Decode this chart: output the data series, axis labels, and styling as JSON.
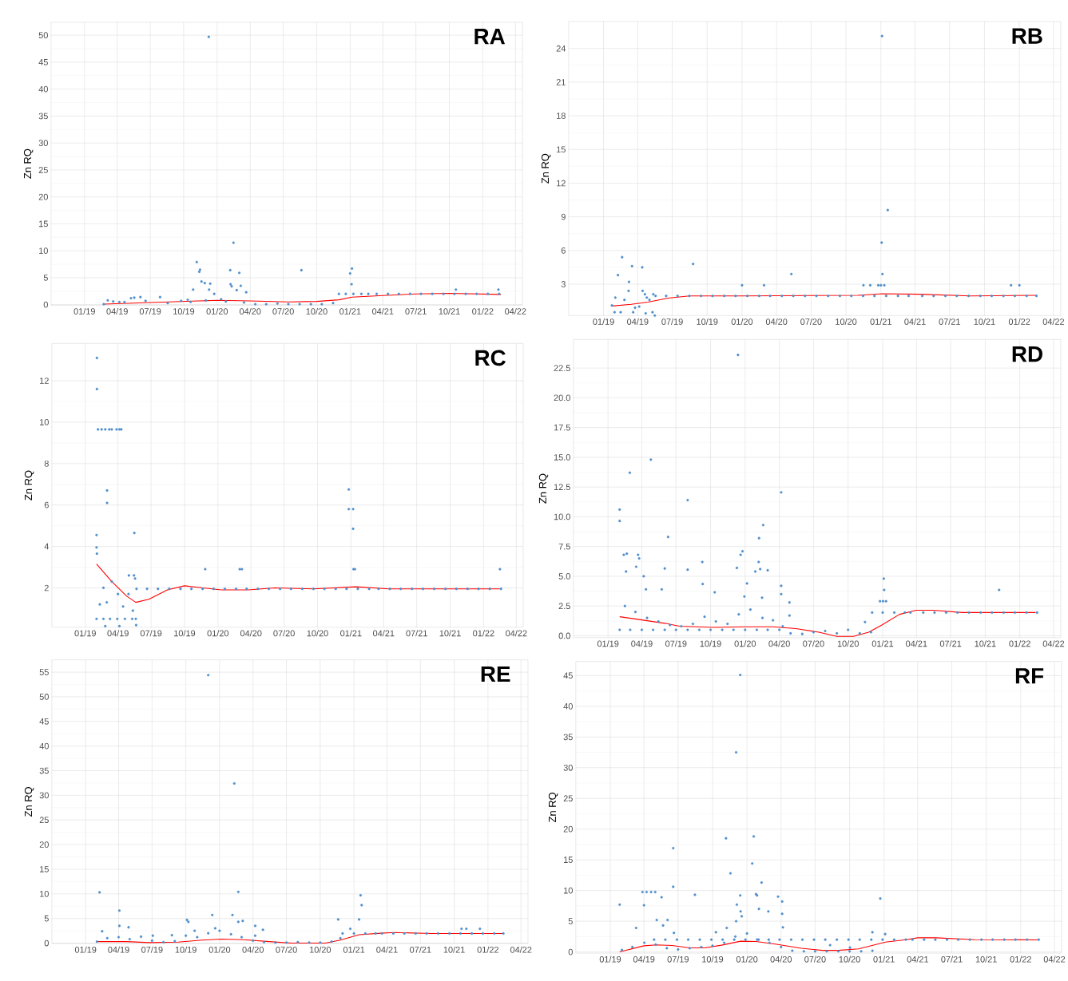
{
  "chart_data": [
    {
      "type": "scatter",
      "title": "RA",
      "ylabel": "Zn RQ",
      "xlim": [
        "2018-10-01",
        "2022-04-20"
      ],
      "xticks": [
        {
          "value": "2019-01-01",
          "label": "01/19"
        },
        {
          "value": "2019-04-01",
          "label": "04/19"
        },
        {
          "value": "2019-07-01",
          "label": "07/19"
        },
        {
          "value": "2019-10-01",
          "label": "10/19"
        },
        {
          "value": "2020-01-01",
          "label": "01/20"
        },
        {
          "value": "2020-04-01",
          "label": "04/20"
        },
        {
          "value": "2020-07-01",
          "label": "07/20"
        },
        {
          "value": "2020-10-01",
          "label": "10/20"
        },
        {
          "value": "2021-01-01",
          "label": "01/21"
        },
        {
          "value": "2021-04-01",
          "label": "04/21"
        },
        {
          "value": "2021-07-01",
          "label": "07/21"
        },
        {
          "value": "2021-10-01",
          "label": "10/21"
        },
        {
          "value": "2022-01-01",
          "label": "01/22"
        },
        {
          "value": "2022-04-01",
          "label": "04/22"
        }
      ],
      "ylim": [
        -0.1,
        52.4
      ],
      "yticks": [
        0,
        5,
        10,
        15,
        20,
        25,
        30,
        35,
        40,
        45,
        50
      ],
      "grid": true,
      "series": [
        {
          "type": "scatter",
          "color": "#4f8fcc",
          "marker": "circle",
          "x": [
            "2019-02-23",
            "2019-03-06",
            "2019-03-21",
            "2019-04-07",
            "2019-04-21",
            "2019-05-09",
            "2019-05-18",
            "2019-06-04",
            "2019-06-18",
            "2019-07-28",
            "2019-08-18",
            "2019-09-24",
            "2019-10-12",
            "2019-10-27",
            "2019-11-06",
            "2019-11-13",
            "2019-11-15",
            "2019-11-19",
            "2019-11-28",
            "2019-12-09",
            "2019-12-10",
            "2019-12-13",
            "2019-12-24",
            "2020-01-12",
            "2020-02-06",
            "2020-02-07",
            "2020-02-10",
            "2020-02-15",
            "2020-02-24",
            "2020-03-02",
            "2020-03-06",
            "2020-03-21",
            "2019-10-20",
            "2019-12-01",
            "2020-01-25",
            "2020-03-15",
            "2020-04-15",
            "2020-05-15",
            "2020-06-15",
            "2020-07-15",
            "2020-08-15",
            "2020-08-20",
            "2020-09-15",
            "2020-10-15",
            "2020-11-15",
            "2020-12-01",
            "2020-12-20",
            "2021-01-10",
            "2021-02-01",
            "2021-02-20",
            "2021-03-15",
            "2021-01-01",
            "2021-01-06",
            "2021-01-05",
            "2021-04-15",
            "2021-05-15",
            "2021-06-15",
            "2021-07-15",
            "2021-08-15",
            "2021-09-15",
            "2021-10-15",
            "2021-11-15",
            "2021-12-15",
            "2022-01-15",
            "2022-02-15",
            "2021-10-19",
            "2022-02-13"
          ],
          "values": [
            0.1,
            0.8,
            0.6,
            0.5,
            0.5,
            1.2,
            1.3,
            1.4,
            0.7,
            1.4,
            0.3,
            0.7,
            0.9,
            2.8,
            7.9,
            6.1,
            6.5,
            4.3,
            4.0,
            49.7,
            2.8,
            3.9,
            2.0,
            1.0,
            6.4,
            3.8,
            3.4,
            11.5,
            2.7,
            5.9,
            3.5,
            2.3,
            0.5,
            0.8,
            0.6,
            0.4,
            0.1,
            0.1,
            0.2,
            0.1,
            0.1,
            6.4,
            0.1,
            0.1,
            0.3,
            2.0,
            2.0,
            2.0,
            2.0,
            2.0,
            2.0,
            5.8,
            6.7,
            3.8,
            2.0,
            2.0,
            2.0,
            2.0,
            2.0,
            2.0,
            2.0,
            2.0,
            2.0,
            2.0,
            2.0,
            2.8,
            2.8
          ]
        },
        {
          "type": "line",
          "color": "#ff0000",
          "marker": "none",
          "line_style": "solid",
          "x": [
            "2019-02-23",
            "2019-07-01",
            "2019-10-01",
            "2020-01-01",
            "2020-04-01",
            "2020-07-15",
            "2020-10-01",
            "2020-12-01",
            "2021-01-06",
            "2021-04-01",
            "2021-07-01",
            "2021-10-01",
            "2022-02-20"
          ],
          "values": [
            0.1,
            0.4,
            0.6,
            0.8,
            0.7,
            0.5,
            0.6,
            0.9,
            1.4,
            1.7,
            2.0,
            2.1,
            1.9
          ]
        }
      ]
    },
    {
      "type": "scatter",
      "title": "RB",
      "ylabel": "Zn RQ",
      "xlim": [
        "2018-10-01",
        "2022-04-20"
      ],
      "xticks": [
        {
          "value": "2019-01-01",
          "label": "01/19"
        },
        {
          "value": "2019-04-01",
          "label": "04/19"
        },
        {
          "value": "2019-07-01",
          "label": "07/19"
        },
        {
          "value": "2019-10-01",
          "label": "10/19"
        },
        {
          "value": "2020-01-01",
          "label": "01/20"
        },
        {
          "value": "2020-04-01",
          "label": "04/20"
        },
        {
          "value": "2020-07-01",
          "label": "07/20"
        },
        {
          "value": "2020-10-01",
          "label": "10/20"
        },
        {
          "value": "2021-01-01",
          "label": "01/21"
        },
        {
          "value": "2021-04-01",
          "label": "04/21"
        },
        {
          "value": "2021-07-01",
          "label": "07/21"
        },
        {
          "value": "2021-10-01",
          "label": "10/21"
        },
        {
          "value": "2022-01-01",
          "label": "01/22"
        },
        {
          "value": "2022-04-01",
          "label": "04/22"
        }
      ],
      "ylim": [
        0.2,
        26.4
      ],
      "yticks": [
        3,
        6,
        9,
        12,
        15,
        18,
        21,
        24
      ],
      "grid": true,
      "series": [
        {
          "type": "scatter",
          "color": "#4f8fcc",
          "marker": "circle",
          "x": [
            "2019-01-23",
            "2019-01-30",
            "2019-02-08",
            "2019-02-19",
            "2019-03-08",
            "2019-03-09",
            "2019-03-17",
            "2019-04-13",
            "2019-04-14",
            "2019-04-20",
            "2019-05-02",
            "2019-05-12",
            "2019-05-16",
            "2019-02-15",
            "2019-03-20",
            "2019-04-22",
            "2019-05-10",
            "2019-02-01",
            "2019-02-25",
            "2019-03-25",
            "2019-04-05",
            "2019-04-25",
            "2019-05-18",
            "2019-06-15",
            "2019-07-15",
            "2019-08-15",
            "2019-09-15",
            "2019-10-15",
            "2019-11-15",
            "2019-12-15",
            "2020-01-15",
            "2020-02-15",
            "2020-03-15",
            "2020-04-15",
            "2020-05-15",
            "2020-06-15",
            "2020-07-15",
            "2020-08-15",
            "2020-09-15",
            "2020-10-15",
            "2020-11-15",
            "2020-12-15",
            "2021-01-15",
            "2021-02-15",
            "2021-03-15",
            "2021-04-20",
            "2021-05-20",
            "2021-06-20",
            "2021-07-20",
            "2021-08-20",
            "2021-09-20",
            "2021-10-20",
            "2021-11-20",
            "2021-12-20",
            "2022-01-20",
            "2022-02-15",
            "2019-08-25",
            "2020-01-01",
            "2020-02-28",
            "2020-05-10",
            "2020-11-16",
            "2020-12-04",
            "2020-12-25",
            "2021-01-01",
            "2021-01-10",
            "2021-01-04",
            "2021-01-03",
            "2021-01-05",
            "2021-01-19",
            "2021-12-10",
            "2022-01-01"
          ],
          "values": [
            1.1,
            0.5,
            3.8,
            5.4,
            2.4,
            3.2,
            4.6,
            4.5,
            2.4,
            2.1,
            1.6,
            2.1,
            0.2,
            0.5,
            0.5,
            0.4,
            0.5,
            1.8,
            1.6,
            0.9,
            1.0,
            1.8,
            1.95,
            1.95,
            1.95,
            1.95,
            1.95,
            1.95,
            1.95,
            1.95,
            1.95,
            1.95,
            1.95,
            1.95,
            1.95,
            1.95,
            1.95,
            1.95,
            1.95,
            1.95,
            1.95,
            1.95,
            1.95,
            1.95,
            1.95,
            1.95,
            1.95,
            1.95,
            1.95,
            1.95,
            1.95,
            1.95,
            1.95,
            1.95,
            1.95,
            1.95,
            4.8,
            2.9,
            2.9,
            3.9,
            2.9,
            2.9,
            2.9,
            2.9,
            2.9,
            25.1,
            6.7,
            3.9,
            9.6,
            2.9,
            2.9
          ]
        },
        {
          "type": "line",
          "color": "#ff0000",
          "marker": "none",
          "line_style": "solid",
          "x": [
            "2019-01-23",
            "2019-03-15",
            "2019-04-28",
            "2019-06-20",
            "2019-08-15",
            "2020-01-01",
            "2020-11-01",
            "2021-01-05",
            "2021-04-15",
            "2021-08-25",
            "2022-02-15"
          ],
          "values": [
            1.05,
            1.2,
            1.4,
            1.75,
            1.95,
            1.95,
            2.0,
            2.15,
            2.1,
            1.95,
            2.0
          ]
        }
      ]
    },
    {
      "type": "scatter",
      "title": "RC",
      "ylabel": "Zn RQ",
      "xlim": [
        "2018-10-01",
        "2022-04-20"
      ],
      "xticks": [
        {
          "value": "2019-01-01",
          "label": "01/19"
        },
        {
          "value": "2019-04-01",
          "label": "04/19"
        },
        {
          "value": "2019-07-01",
          "label": "07/19"
        },
        {
          "value": "2019-10-01",
          "label": "10/19"
        },
        {
          "value": "2020-01-01",
          "label": "01/20"
        },
        {
          "value": "2020-04-01",
          "label": "04/20"
        },
        {
          "value": "2020-07-01",
          "label": "07/20"
        },
        {
          "value": "2020-10-01",
          "label": "10/20"
        },
        {
          "value": "2021-01-01",
          "label": "01/21"
        },
        {
          "value": "2021-04-01",
          "label": "04/21"
        },
        {
          "value": "2021-07-01",
          "label": "07/21"
        },
        {
          "value": "2021-10-01",
          "label": "10/21"
        },
        {
          "value": "2022-01-01",
          "label": "01/22"
        },
        {
          "value": "2022-04-01",
          "label": "04/22"
        }
      ],
      "ylim": [
        0.1,
        13.8
      ],
      "yticks": [
        2,
        4,
        6,
        8,
        10,
        12
      ],
      "grid": true,
      "series": [
        {
          "type": "scatter",
          "color": "#4f8fcc",
          "marker": "circle",
          "x": [
            "2019-02-02",
            "2019-02-02",
            "2019-02-05",
            "2019-02-15",
            "2019-02-25",
            "2019-03-08",
            "2019-03-15",
            "2019-03-28",
            "2019-04-05",
            "2019-04-10",
            "2019-03-02",
            "2019-03-02",
            "2019-02-01",
            "2019-02-01",
            "2019-02-02",
            "2019-05-16",
            "2019-05-01",
            "2019-05-15",
            "2019-05-18",
            "2019-02-01",
            "2019-02-20",
            "2019-03-10",
            "2019-03-30",
            "2019-04-20",
            "2019-05-10",
            "2019-05-20",
            "2019-02-10",
            "2019-02-20",
            "2019-03-01",
            "2019-03-15",
            "2019-04-01",
            "2019-04-15",
            "2019-04-30",
            "2019-05-12",
            "2019-02-25",
            "2019-04-05",
            "2019-05-21",
            "2019-05-22",
            "2019-06-20",
            "2019-07-20",
            "2019-08-20",
            "2019-09-20",
            "2019-10-20",
            "2019-11-20",
            "2019-12-20",
            "2020-01-20",
            "2020-02-20",
            "2020-03-20",
            "2020-04-20",
            "2020-05-20",
            "2020-06-20",
            "2020-07-20",
            "2020-08-20",
            "2020-09-20",
            "2020-10-20",
            "2020-11-20",
            "2020-12-20",
            "2021-01-20",
            "2021-02-20",
            "2021-03-18",
            "2021-04-18",
            "2021-05-18",
            "2021-06-18",
            "2021-07-18",
            "2021-08-18",
            "2021-09-18",
            "2021-10-18",
            "2021-11-18",
            "2021-12-18",
            "2022-01-18",
            "2022-02-18",
            "2019-11-27",
            "2020-03-01",
            "2020-03-07",
            "2020-12-26",
            "2020-12-26",
            "2021-01-07",
            "2021-01-07",
            "2021-01-08",
            "2021-01-12",
            "2022-02-15"
          ],
          "values": [
            13.1,
            11.6,
            9.65,
            9.65,
            9.65,
            9.65,
            9.65,
            9.65,
            9.65,
            9.65,
            6.7,
            6.1,
            4.55,
            3.95,
            3.65,
            4.65,
            2.6,
            2.6,
            2.45,
            0.5,
            0.5,
            0.5,
            0.5,
            0.5,
            0.5,
            0.5,
            1.2,
            2.0,
            1.3,
            2.3,
            1.7,
            1.1,
            1.7,
            0.9,
            0.15,
            0.15,
            0.2,
            1.95,
            1.95,
            1.95,
            1.95,
            1.95,
            1.95,
            1.95,
            1.95,
            1.95,
            1.95,
            1.95,
            1.95,
            1.95,
            1.95,
            1.95,
            1.95,
            1.95,
            1.95,
            1.95,
            1.95,
            1.95,
            1.95,
            1.95,
            1.95,
            1.95,
            1.95,
            1.95,
            1.95,
            1.95,
            1.95,
            1.95,
            1.95,
            1.95,
            1.95,
            2.9,
            2.9,
            2.9,
            6.75,
            5.8,
            5.8,
            4.85,
            2.9,
            2.9,
            2.9
          ]
        },
        {
          "type": "line",
          "color": "#ff0000",
          "marker": "none",
          "line_style": "solid",
          "x": [
            "2019-02-01",
            "2019-03-15",
            "2019-04-25",
            "2019-05-20",
            "2019-06-25",
            "2019-08-15",
            "2019-10-01",
            "2019-11-20",
            "2020-01-10",
            "2020-03-25",
            "2020-06-05",
            "2020-09-20",
            "2021-01-15",
            "2021-04-15",
            "2022-02-15"
          ],
          "values": [
            3.15,
            2.3,
            1.6,
            1.3,
            1.45,
            1.9,
            2.1,
            2.0,
            1.9,
            1.9,
            2.0,
            1.95,
            2.05,
            1.95,
            1.95
          ]
        }
      ]
    },
    {
      "type": "scatter",
      "title": "RD",
      "ylabel": "Zn RQ",
      "xlim": [
        "2018-10-01",
        "2022-04-20"
      ],
      "xticks": [
        {
          "value": "2019-01-01",
          "label": "01/19"
        },
        {
          "value": "2019-04-01",
          "label": "04/19"
        },
        {
          "value": "2019-07-01",
          "label": "07/19"
        },
        {
          "value": "2019-10-01",
          "label": "10/19"
        },
        {
          "value": "2020-01-01",
          "label": "01/20"
        },
        {
          "value": "2020-04-01",
          "label": "04/20"
        },
        {
          "value": "2020-07-01",
          "label": "07/20"
        },
        {
          "value": "2020-10-01",
          "label": "10/20"
        },
        {
          "value": "2021-01-01",
          "label": "01/21"
        },
        {
          "value": "2021-04-01",
          "label": "04/21"
        },
        {
          "value": "2021-07-01",
          "label": "07/21"
        },
        {
          "value": "2021-10-01",
          "label": "10/21"
        },
        {
          "value": "2022-01-01",
          "label": "01/22"
        },
        {
          "value": "2022-04-01",
          "label": "04/22"
        }
      ],
      "ylim": [
        -0.15,
        24.9
      ],
      "yticks": [
        {
          "value": 0,
          "label": "0.0"
        },
        2.5,
        {
          "value": 5,
          "label": "5.0"
        },
        7.5,
        {
          "value": 10,
          "label": "10.0"
        },
        12.5,
        {
          "value": 15,
          "label": "15.0"
        },
        17.5,
        {
          "value": 20,
          "label": "20.0"
        },
        22.5
      ],
      "grid": true,
      "series": [
        {
          "type": "scatter",
          "color": "#4f8fcc",
          "marker": "circle",
          "x": [
            "2019-02-01",
            "2019-02-01",
            "2019-02-28",
            "2019-04-25",
            "2019-08-01",
            "2019-06-10",
            "2019-12-13",
            "2020-04-06",
            "2020-02-18",
            "2020-02-07",
            "2019-12-25",
            "2019-12-20",
            "2020-02-06",
            "2020-02-10",
            "2020-03-01",
            "2020-01-28",
            "2019-12-10",
            "2019-09-09",
            "2019-09-10",
            "2019-08-01",
            "2019-06-01",
            "2019-02-12",
            "2019-02-20",
            "2019-03-22",
            "2019-03-25",
            "2019-03-17",
            "2019-04-06",
            "2019-02-18",
            "2019-04-12",
            "2019-05-24",
            "2019-10-12",
            "2020-04-06",
            "2020-04-06",
            "2020-04-28",
            "2020-04-28",
            "2020-01-06",
            "2019-12-30",
            "2020-02-15",
            "2019-02-15",
            "2019-03-15",
            "2019-04-15",
            "2019-05-15",
            "2019-06-15",
            "2019-07-15",
            "2019-08-15",
            "2019-09-15",
            "2019-10-15",
            "2019-11-15",
            "2019-12-15",
            "2020-01-15",
            "2020-02-16",
            "2020-03-15",
            "2020-04-10",
            "2019-02-01",
            "2019-03-01",
            "2019-04-01",
            "2019-05-01",
            "2019-06-01",
            "2019-07-01",
            "2019-08-01",
            "2019-09-01",
            "2019-10-01",
            "2019-11-01",
            "2019-12-01",
            "2020-01-01",
            "2020-02-01",
            "2020-03-01",
            "2020-04-01",
            "2020-05-01",
            "2020-06-01",
            "2020-07-01",
            "2020-08-01",
            "2020-09-01",
            "2020-10-01",
            "2020-11-01",
            "2020-12-01",
            "2020-11-15",
            "2020-12-04",
            "2021-01-01",
            "2021-02-01",
            "2021-03-01",
            "2021-03-16",
            "2021-04-19",
            "2021-05-19",
            "2021-06-19",
            "2021-07-19",
            "2021-08-19",
            "2021-09-19",
            "2021-10-19",
            "2021-11-19",
            "2021-12-19",
            "2022-01-19",
            "2022-02-16",
            "2021-01-04",
            "2021-01-05",
            "2020-12-25",
            "2021-01-02",
            "2021-01-10",
            "2021-11-07"
          ],
          "values": [
            10.6,
            9.65,
            13.7,
            14.8,
            11.4,
            8.3,
            23.6,
            12.05,
            9.3,
            8.2,
            7.1,
            6.8,
            6.2,
            5.6,
            5.5,
            5.4,
            5.7,
            6.2,
            4.35,
            5.55,
            5.65,
            6.8,
            6.9,
            6.8,
            6.5,
            5.8,
            5.0,
            5.4,
            3.9,
            3.9,
            3.65,
            4.2,
            3.5,
            2.8,
            1.7,
            4.4,
            3.3,
            3.2,
            2.5,
            2.0,
            1.5,
            1.2,
            0.9,
            0.8,
            1.0,
            1.6,
            1.2,
            1.0,
            1.8,
            2.2,
            1.5,
            1.3,
            0.8,
            0.5,
            0.5,
            0.5,
            0.5,
            0.5,
            0.5,
            0.5,
            0.5,
            0.5,
            0.5,
            0.5,
            0.5,
            0.5,
            0.5,
            0.5,
            0.2,
            0.15,
            0.3,
            0.4,
            0.2,
            0.5,
            0.2,
            0.3,
            1.15,
            1.95,
            1.95,
            1.95,
            1.95,
            1.95,
            1.95,
            1.95,
            1.95,
            1.95,
            1.95,
            1.95,
            1.95,
            1.95,
            1.95,
            1.95,
            1.95,
            4.8,
            3.85,
            2.9,
            2.9,
            2.9,
            3.85
          ]
        },
        {
          "type": "line",
          "color": "#ff0000",
          "marker": "none",
          "line_style": "solid",
          "x": [
            "2019-02-01",
            "2019-03-28",
            "2019-06-01",
            "2019-07-10",
            "2019-10-10",
            "2020-01-01",
            "2020-03-15",
            "2020-05-15",
            "2020-07-15",
            "2020-09-01",
            "2020-10-15",
            "2020-11-25",
            "2020-12-30",
            "2021-02-15",
            "2021-04-01",
            "2021-05-15",
            "2021-08-01",
            "2021-11-15",
            "2022-02-12"
          ],
          "values": [
            1.6,
            1.35,
            1.05,
            0.8,
            0.7,
            0.75,
            0.75,
            0.6,
            0.3,
            -0.05,
            -0.05,
            0.3,
            0.9,
            1.8,
            2.15,
            2.15,
            1.95,
            1.95,
            1.95
          ]
        }
      ]
    },
    {
      "type": "scatter",
      "title": "RE",
      "ylabel": "Zn RQ",
      "xlim": [
        "2018-10-01",
        "2022-04-20"
      ],
      "xticks": [
        {
          "value": "2019-01-01",
          "label": "01/19"
        },
        {
          "value": "2019-04-01",
          "label": "04/19"
        },
        {
          "value": "2019-07-01",
          "label": "07/19"
        },
        {
          "value": "2019-10-01",
          "label": "10/19"
        },
        {
          "value": "2020-01-01",
          "label": "01/20"
        },
        {
          "value": "2020-04-01",
          "label": "04/20"
        },
        {
          "value": "2020-07-01",
          "label": "07/20"
        },
        {
          "value": "2020-10-01",
          "label": "10/20"
        },
        {
          "value": "2021-01-01",
          "label": "01/21"
        },
        {
          "value": "2021-04-01",
          "label": "04/21"
        },
        {
          "value": "2021-07-01",
          "label": "07/21"
        },
        {
          "value": "2021-10-01",
          "label": "10/21"
        },
        {
          "value": "2022-01-01",
          "label": "01/22"
        },
        {
          "value": "2022-04-01",
          "label": "04/22"
        }
      ],
      "ylim": [
        -0.1,
        57.5
      ],
      "yticks": [
        0,
        5,
        10,
        15,
        20,
        25,
        30,
        35,
        40,
        45,
        50,
        55
      ],
      "grid": true,
      "series": [
        {
          "type": "scatter",
          "color": "#4f8fcc",
          "marker": "circle",
          "x": [
            "2019-02-08",
            "2019-04-03",
            "2019-04-03",
            "2019-04-28",
            "2019-02-15",
            "2019-12-01",
            "2020-02-10",
            "2020-02-21",
            "2019-10-04",
            "2019-10-08",
            "2019-12-12",
            "2020-02-05",
            "2020-03-04",
            "2020-02-21",
            "2020-04-07",
            "2020-04-28",
            "2020-04-07",
            "2019-08-24",
            "2019-07-03",
            "2019-10-25",
            "2019-12-20",
            "2020-11-19",
            "2020-12-22",
            "2021-01-15",
            "2021-01-19",
            "2021-01-22",
            "2021-10-21",
            "2021-11-03",
            "2021-12-10",
            "2019-02-01",
            "2019-03-01",
            "2019-04-01",
            "2019-05-01",
            "2019-06-01",
            "2019-07-01",
            "2019-08-01",
            "2019-09-01",
            "2019-10-01",
            "2019-11-01",
            "2019-12-01",
            "2020-01-01",
            "2020-02-01",
            "2020-03-01",
            "2020-04-01",
            "2020-05-01",
            "2020-06-01",
            "2020-07-01",
            "2020-08-01",
            "2020-09-01",
            "2020-10-01",
            "2020-11-01",
            "2020-11-25",
            "2020-12-01",
            "2021-01-01",
            "2021-02-01",
            "2021-03-01",
            "2021-03-18",
            "2021-04-18",
            "2021-05-18",
            "2021-06-18",
            "2021-07-18",
            "2021-08-18",
            "2021-09-18",
            "2021-10-18",
            "2021-11-18",
            "2021-12-18",
            "2022-01-18",
            "2022-02-12"
          ],
          "values": [
            10.3,
            6.6,
            3.5,
            3.2,
            2.4,
            54.4,
            32.4,
            10.4,
            4.7,
            4.3,
            5.7,
            5.7,
            4.5,
            4.3,
            3.5,
            2.7,
            1.5,
            1.6,
            1.5,
            2.5,
            3.0,
            4.8,
            2.9,
            4.8,
            9.7,
            7.7,
            2.9,
            2.9,
            2.9,
            0.3,
            1.0,
            1.2,
            0.8,
            1.3,
            0.5,
            0.2,
            0.4,
            1.5,
            1.2,
            2.0,
            2.5,
            1.8,
            1.2,
            0.5,
            0.2,
            0.1,
            0.1,
            0.2,
            0.1,
            0.1,
            0.3,
            1.0,
            1.95,
            1.95,
            1.95,
            1.95,
            1.95,
            1.95,
            1.95,
            1.95,
            1.95,
            1.95,
            1.95,
            1.95,
            1.95,
            1.95,
            1.95,
            1.95
          ]
        },
        {
          "type": "line",
          "color": "#ff0000",
          "marker": "none",
          "line_style": "solid",
          "x": [
            "2019-02-01",
            "2019-04-20",
            "2019-06-25",
            "2019-09-10",
            "2019-11-15",
            "2020-01-05",
            "2020-03-05",
            "2020-05-15",
            "2020-07-15",
            "2020-10-15",
            "2020-11-25",
            "2021-01-15",
            "2021-03-15",
            "2021-04-20",
            "2021-08-01",
            "2022-02-12"
          ],
          "values": [
            0.3,
            0.3,
            0.1,
            0.2,
            0.6,
            0.8,
            0.7,
            0.3,
            0.0,
            0.0,
            0.6,
            1.7,
            2.0,
            2.15,
            1.95,
            1.95
          ]
        }
      ]
    },
    {
      "type": "scatter",
      "title": "RF",
      "ylabel": "Zn RQ",
      "xlim": [
        "2018-10-01",
        "2022-04-20"
      ],
      "xticks": [
        {
          "value": "2019-01-01",
          "label": "01/19"
        },
        {
          "value": "2019-04-01",
          "label": "04/19"
        },
        {
          "value": "2019-07-01",
          "label": "07/19"
        },
        {
          "value": "2019-10-01",
          "label": "10/19"
        },
        {
          "value": "2020-01-01",
          "label": "01/20"
        },
        {
          "value": "2020-04-01",
          "label": "04/20"
        },
        {
          "value": "2020-07-01",
          "label": "07/20"
        },
        {
          "value": "2020-10-01",
          "label": "10/20"
        },
        {
          "value": "2021-01-01",
          "label": "01/21"
        },
        {
          "value": "2021-04-01",
          "label": "04/21"
        },
        {
          "value": "2021-07-01",
          "label": "07/21"
        },
        {
          "value": "2021-10-01",
          "label": "10/21"
        },
        {
          "value": "2022-01-01",
          "label": "01/22"
        },
        {
          "value": "2022-04-01",
          "label": "04/22"
        }
      ],
      "ylim": [
        -0.2,
        47.3
      ],
      "yticks": [
        0,
        5,
        10,
        15,
        20,
        25,
        30,
        35,
        40,
        45
      ],
      "grid": true,
      "series": [
        {
          "type": "scatter",
          "color": "#4f8fcc",
          "marker": "circle",
          "x": [
            "2019-01-26",
            "2019-04-01",
            "2019-03-11",
            "2019-03-28",
            "2019-04-08",
            "2019-04-20",
            "2019-05-01",
            "2019-06-18",
            "2019-06-18",
            "2019-05-18",
            "2019-05-05",
            "2019-06-03",
            "2019-05-22",
            "2019-06-20",
            "2019-08-15",
            "2019-11-06",
            "2019-11-18",
            "2019-12-03",
            "2019-12-14",
            "2020-01-19",
            "2020-01-15",
            "2020-02-09",
            "2019-12-14",
            "2019-12-05",
            "2020-01-25",
            "2020-01-28",
            "2020-02-02",
            "2020-02-27",
            "2020-03-24",
            "2020-04-04",
            "2020-04-04",
            "2020-04-06",
            "2019-12-15",
            "2019-12-18",
            "2019-12-03",
            "2019-11-08",
            "2019-10-10",
            "2020-12-22",
            "2020-12-01",
            "2021-01-04",
            "2020-08-10",
            "2020-10-02",
            "2019-02-01",
            "2019-03-01",
            "2019-04-02",
            "2019-05-02",
            "2019-06-01",
            "2019-07-01",
            "2019-08-01",
            "2019-09-01",
            "2019-10-01",
            "2019-11-01",
            "2019-12-01",
            "2020-01-01",
            "2020-02-01",
            "2020-03-01",
            "2020-04-01",
            "2020-05-01",
            "2020-06-01",
            "2020-07-01",
            "2020-08-01",
            "2020-09-01",
            "2020-10-01",
            "2020-11-01",
            "2020-12-01",
            "2019-04-28",
            "2019-05-28",
            "2019-06-28",
            "2019-07-28",
            "2019-08-28",
            "2019-09-28",
            "2019-10-28",
            "2019-11-28",
            "2019-12-28",
            "2020-01-28",
            "2020-02-28",
            "2020-03-28",
            "2020-04-28",
            "2020-05-28",
            "2020-06-28",
            "2020-07-28",
            "2020-08-28",
            "2020-09-28",
            "2020-10-28",
            "2020-11-28",
            "2020-12-28",
            "2021-01-28",
            "2021-02-28",
            "2021-03-18",
            "2021-04-18",
            "2021-05-18",
            "2021-06-18",
            "2021-07-18",
            "2021-08-18",
            "2021-09-18",
            "2021-10-18",
            "2021-11-18",
            "2021-12-18",
            "2022-01-18",
            "2022-02-18"
          ],
          "values": [
            7.7,
            7.6,
            3.9,
            9.75,
            9.75,
            9.75,
            9.75,
            16.9,
            10.6,
            8.9,
            5.2,
            5.2,
            4.3,
            3.1,
            9.3,
            18.5,
            12.8,
            32.5,
            45.1,
            18.8,
            14.4,
            11.3,
            9.2,
            7.7,
            9.4,
            9.2,
            7.0,
            6.6,
            9.0,
            8.2,
            6.2,
            4.0,
            6.6,
            5.8,
            5.0,
            3.9,
            3.2,
            8.7,
            3.2,
            2.9,
            1.1,
            0.7,
            0.3,
            0.8,
            1.5,
            1.2,
            0.6,
            0.4,
            0.6,
            0.8,
            1.0,
            1.5,
            2.5,
            3.0,
            2.0,
            1.5,
            0.8,
            0.2,
            0.1,
            0.1,
            0.1,
            0.1,
            0.1,
            0.1,
            0.2,
            2.0,
            2.0,
            2.0,
            2.0,
            2.0,
            2.0,
            2.0,
            2.0,
            2.0,
            2.0,
            2.0,
            2.0,
            2.0,
            2.0,
            2.0,
            2.0,
            2.0,
            2.0,
            2.0,
            2.0,
            2.0,
            2.0,
            2.0,
            2.0,
            2.0,
            2.0,
            2.0,
            2.0,
            2.0,
            2.0,
            2.0,
            2.0,
            2.0,
            2.0,
            2.0
          ]
        },
        {
          "type": "line",
          "color": "#ff0000",
          "marker": "none",
          "line_style": "solid",
          "x": [
            "2019-01-26",
            "2019-04-01",
            "2019-05-05",
            "2019-06-15",
            "2019-08-01",
            "2019-09-10",
            "2019-10-25",
            "2019-12-15",
            "2020-01-25",
            "2020-03-20",
            "2020-05-25",
            "2020-07-20",
            "2020-09-01",
            "2020-10-25",
            "2021-01-05",
            "2021-03-01",
            "2021-04-01",
            "2021-05-20",
            "2021-09-01",
            "2022-02-18"
          ],
          "values": [
            0.0,
            1.0,
            1.15,
            1.05,
            0.65,
            0.65,
            1.1,
            1.75,
            1.7,
            1.25,
            0.6,
            0.25,
            0.25,
            0.5,
            1.6,
            2.0,
            2.3,
            2.3,
            2.0,
            1.95
          ]
        }
      ]
    }
  ]
}
